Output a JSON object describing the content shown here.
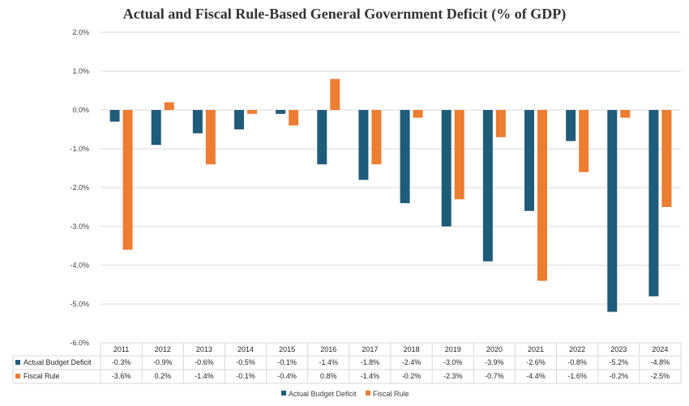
{
  "chart_data": {
    "type": "bar",
    "title": "Actual and Fiscal Rule-Based General Government Deficit (% of GDP)",
    "categories": [
      "2011",
      "2012",
      "2013",
      "2014",
      "2015",
      "2016",
      "2017",
      "2018",
      "2019",
      "2020",
      "2021",
      "2022",
      "2023",
      "2024"
    ],
    "series": [
      {
        "name": "Actual Budget Deficit",
        "color": "#1f5c7a",
        "values": [
          -0.3,
          -0.9,
          -0.6,
          -0.5,
          -0.1,
          -1.4,
          -1.8,
          -2.4,
          -3.0,
          -3.9,
          -2.6,
          -0.8,
          -5.2,
          -4.8
        ],
        "labels": [
          "-0.3%",
          "-0.9%",
          "-0.6%",
          "-0.5%",
          "-0.1%",
          "-1.4%",
          "-1.8%",
          "-2.4%",
          "-3.0%",
          "-3.9%",
          "-2.6%",
          "-0.8%",
          "-5.2%",
          "-4.8%"
        ]
      },
      {
        "name": "Fiscal Rule",
        "color": "#ed7d31",
        "values": [
          -3.6,
          0.2,
          -1.4,
          -0.1,
          -0.4,
          0.8,
          -1.4,
          -0.2,
          -2.3,
          -0.7,
          -4.4,
          -1.6,
          -0.2,
          -2.5
        ],
        "labels": [
          "-3.6%",
          "0.2%",
          "-1.4%",
          "-0.1%",
          "-0.4%",
          "0.8%",
          "-1.4%",
          "-0.2%",
          "-2.3%",
          "-0.7%",
          "-4.4%",
          "-1.6%",
          "-0.2%",
          "-2.5%"
        ]
      }
    ],
    "yticks": [
      2,
      1,
      0,
      -1,
      -2,
      -3,
      -4,
      -5,
      -6
    ],
    "ytick_labels": [
      "2.0%",
      "1.0%",
      "0.0%",
      "-1.0%",
      "-2.0%",
      "-3.0%",
      "-4.0%",
      "-5.0%",
      "-6.0%"
    ],
    "ylim": [
      -6,
      2
    ],
    "grid": true,
    "legend_position": "bottom",
    "data_table": true
  }
}
